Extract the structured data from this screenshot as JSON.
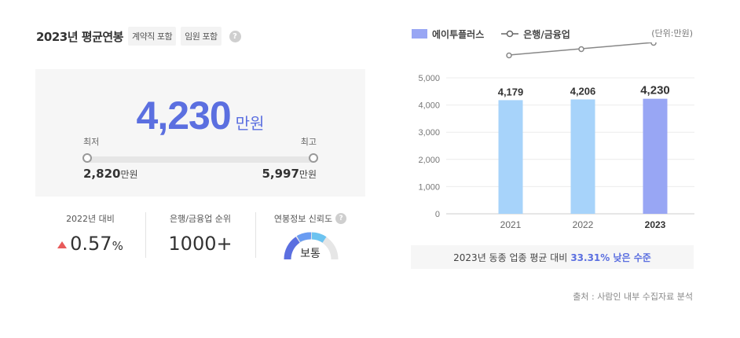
{
  "header": {
    "title": "2023년 평균연봉",
    "tags": [
      "계약직 포함",
      "임원 포함"
    ],
    "help_icon": "?"
  },
  "salary": {
    "value": "4,230",
    "unit": "만원",
    "min_label": "최저",
    "max_label": "최고",
    "min_value": "2,820",
    "max_value": "5,997",
    "value_unit": "만원"
  },
  "stats": {
    "change": {
      "label": "2022년 대비",
      "value": "0.57",
      "suffix": "%",
      "direction": "up"
    },
    "rank": {
      "label": "은행/금융업 순위",
      "value": "1000+"
    },
    "reliability": {
      "label": "연봉정보 신뢰도",
      "value": "보통",
      "level": 0.5
    }
  },
  "chart_data": {
    "type": "bar",
    "categories": [
      "2021",
      "2022",
      "2023"
    ],
    "series": [
      {
        "name": "에이투플러스",
        "values": [
          4179,
          4206,
          4230
        ]
      },
      {
        "name": "은행/금융업",
        "type": "line",
        "values": [
          null,
          null,
          null
        ]
      }
    ],
    "value_labels": [
      "4,179",
      "4,206",
      "4,230"
    ],
    "y_ticks": [
      "0",
      "1,000",
      "2,000",
      "3,000",
      "4,000",
      "5,000"
    ],
    "ylim": [
      0,
      5000
    ],
    "unit": "(단위:만원)",
    "legend_position": "top-left",
    "grid": true,
    "colors": {
      "bar": "#a7d3fa",
      "bar_highlight": "#98a6f4",
      "line": "#888888"
    }
  },
  "note": {
    "prefix": "2023년 동종 업종 평균 대비",
    "highlight": "33.31% 낮은 수준"
  },
  "source": "출처 : 사람인 내부 수집자료 분석"
}
